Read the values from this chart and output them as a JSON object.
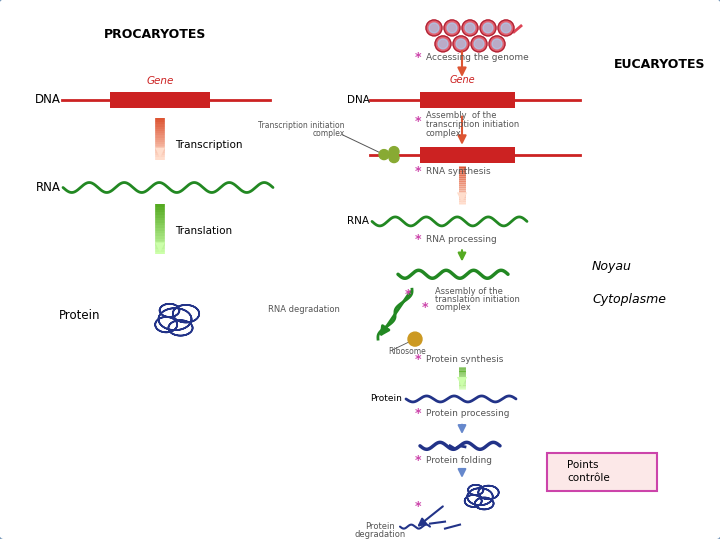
{
  "bg_color": "#ffffff",
  "border_color": "#7799bb",
  "title_procaryotes": "PROCARYOTES",
  "title_eucaryotes": "EUCARYOTES",
  "noyau_label": "Noyau",
  "cytoplasme_label": "Cytoplasme",
  "star_color": "#cc44aa",
  "dna_color": "#cc2222",
  "rna_color": "#228822",
  "protein_color": "#223388",
  "arrow_red": "#dd5533",
  "arrow_green": "#55aa22",
  "arrow_blue": "#6688cc",
  "text_color": "#333333",
  "label_color": "#555555",
  "legend_box_color": "#fce8e8",
  "legend_border": "#cc44aa",
  "chrom_fill": "#dd4455",
  "chrom_blue": "#aaccee",
  "gene_color": "#cc2222",
  "olive_color": "#cc9922"
}
